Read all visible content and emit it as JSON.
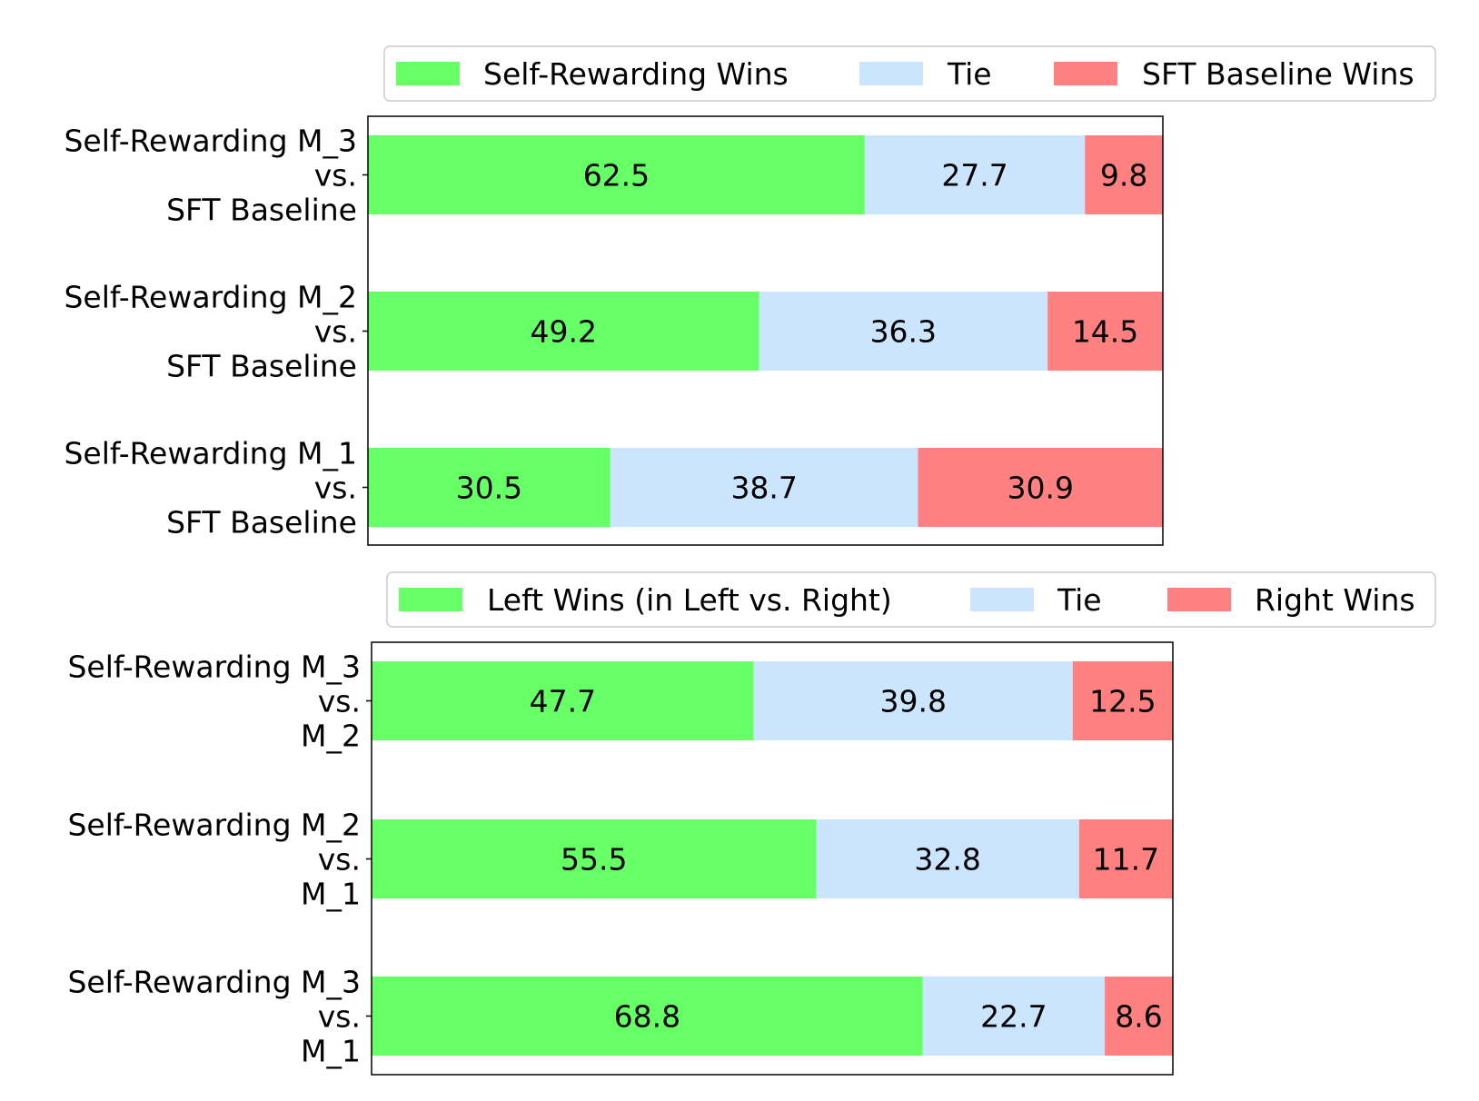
{
  "chart_data": [
    {
      "type": "bar",
      "orientation": "horizontal",
      "stacked": true,
      "categories": [
        [
          "Self-Rewarding M_3",
          "vs.",
          "SFT Baseline"
        ],
        [
          "Self-Rewarding M_2",
          "vs.",
          "SFT Baseline"
        ],
        [
          "Self-Rewarding M_1",
          "vs.",
          "SFT Baseline"
        ]
      ],
      "series": [
        {
          "name": "Self-Rewarding Wins",
          "color": "#66ff66",
          "values": [
            62.5,
            49.2,
            30.5
          ]
        },
        {
          "name": "Tie",
          "color": "#cce5ff",
          "values": [
            27.7,
            36.3,
            38.7
          ]
        },
        {
          "name": "SFT Baseline Wins",
          "color": "#ff8080",
          "values": [
            9.8,
            14.5,
            30.9
          ]
        }
      ],
      "xlim": [
        0,
        100
      ],
      "grid": false,
      "legend_position": "top"
    },
    {
      "type": "bar",
      "orientation": "horizontal",
      "stacked": true,
      "categories": [
        [
          "Self-Rewarding M_3",
          "vs.",
          "M_2"
        ],
        [
          "Self-Rewarding M_2",
          "vs.",
          "M_1"
        ],
        [
          "Self-Rewarding M_3",
          "vs.",
          "M_1"
        ]
      ],
      "series": [
        {
          "name": "Left Wins (in Left vs. Right)",
          "color": "#66ff66",
          "values": [
            47.7,
            55.5,
            68.8
          ]
        },
        {
          "name": "Tie",
          "color": "#cce5ff",
          "values": [
            39.8,
            32.8,
            22.7
          ]
        },
        {
          "name": "Right Wins",
          "color": "#ff8080",
          "values": [
            12.5,
            11.7,
            8.6
          ]
        }
      ],
      "xlim": [
        0,
        100
      ],
      "grid": false,
      "legend_position": "top"
    }
  ]
}
